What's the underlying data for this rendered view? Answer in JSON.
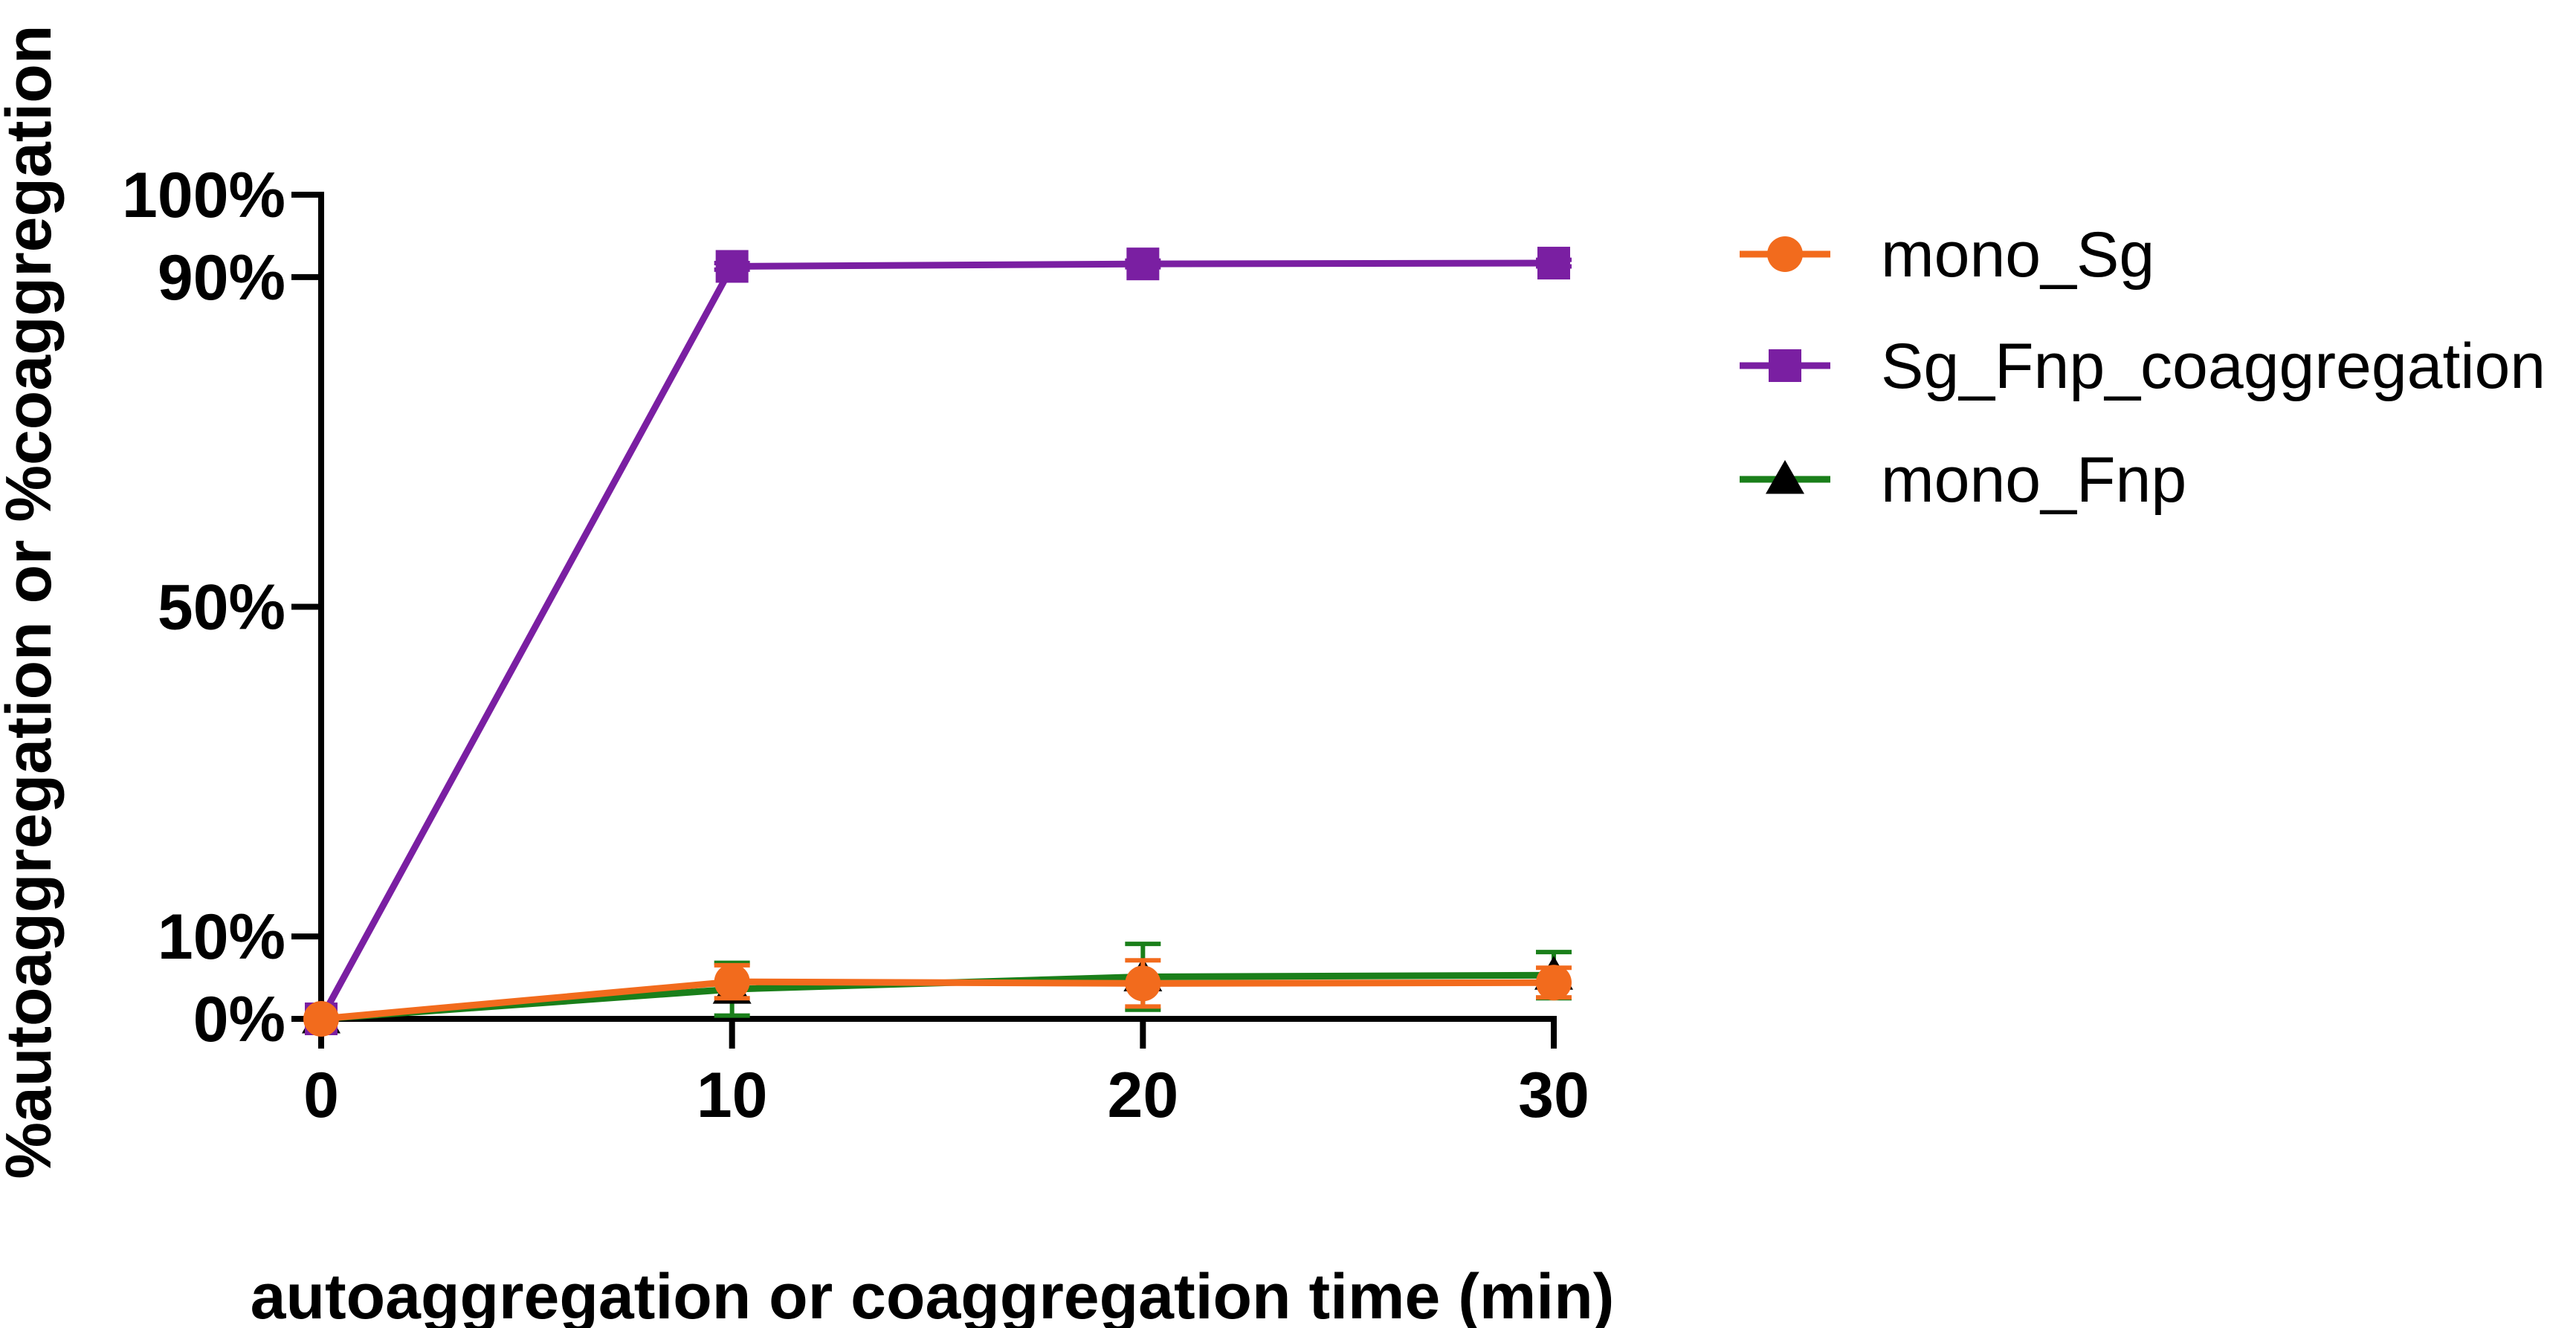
{
  "chart_data": {
    "type": "line",
    "title": "",
    "xlabel": "autoaggregation or coaggregation time (min)",
    "ylabel": "%autoaggregation or %coaggregation",
    "x": [
      0,
      10,
      20,
      30
    ],
    "x_ticks": [
      0,
      10,
      20,
      30
    ],
    "x_tick_labels": [
      "0",
      "10",
      "20",
      "30"
    ],
    "xlim": [
      0,
      30
    ],
    "y_ticks": [
      0,
      10,
      50,
      90,
      100
    ],
    "y_tick_labels": [
      "0%",
      "10%",
      "50%",
      "90%",
      "100%"
    ],
    "ylim": [
      0,
      100
    ],
    "grid": false,
    "legend_position": "right",
    "series": [
      {
        "name": "mono_Sg",
        "color": "#F26B1D",
        "marker": "circle",
        "values": [
          0,
          4.5,
          4.3,
          4.4
        ],
        "error": [
          0,
          2.0,
          2.8,
          1.8
        ]
      },
      {
        "name": "Sg_Fnp_coaggregation",
        "color": "#7A1FA2",
        "marker": "square",
        "values": [
          0,
          91.3,
          91.6,
          91.7
        ],
        "error": [
          0,
          0.4,
          0.4,
          0.4
        ]
      },
      {
        "name": "mono_Fnp",
        "color": "#1A7F1A",
        "marker_color": "#000000",
        "marker": "triangle",
        "values": [
          0,
          3.6,
          5.1,
          5.3
        ],
        "error": [
          0,
          3.2,
          4.0,
          2.8
        ]
      }
    ]
  }
}
